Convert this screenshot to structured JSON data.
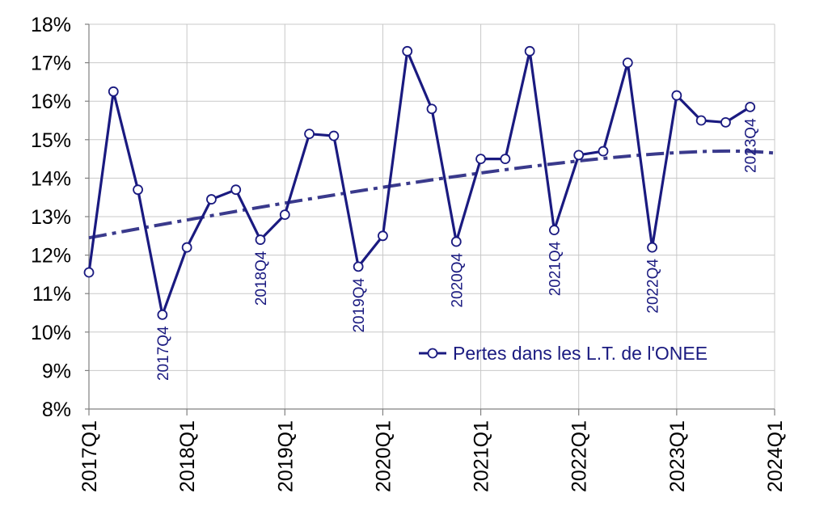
{
  "chart_data": {
    "type": "line",
    "title": "",
    "xlabel": "",
    "ylabel": "",
    "ylim": [
      8,
      18
    ],
    "y_ticks": [
      "8%",
      "9%",
      "10%",
      "11%",
      "12%",
      "13%",
      "14%",
      "15%",
      "16%",
      "17%",
      "18%"
    ],
    "x_ticks": [
      "2017Q1",
      "2018Q1",
      "2019Q1",
      "2020Q1",
      "2021Q1",
      "2022Q1",
      "2023Q1",
      "2024Q1"
    ],
    "grid": true,
    "legend_position": "bottom-right",
    "x": [
      "2017Q1",
      "2017Q2",
      "2017Q3",
      "2017Q4",
      "2018Q1",
      "2018Q2",
      "2018Q3",
      "2018Q4",
      "2019Q1",
      "2019Q2",
      "2019Q3",
      "2019Q4",
      "2020Q1",
      "2020Q2",
      "2020Q3",
      "2020Q4",
      "2021Q1",
      "2021Q2",
      "2021Q3",
      "2021Q4",
      "2022Q1",
      "2022Q2",
      "2022Q3",
      "2022Q4",
      "2023Q1",
      "2023Q2",
      "2023Q3",
      "2023Q4"
    ],
    "series": [
      {
        "name": "Pertes dans les L.T. de l'ONEE",
        "color": "#1a1a80",
        "values": [
          11.55,
          16.25,
          13.7,
          10.45,
          12.2,
          13.45,
          13.7,
          12.4,
          13.05,
          15.15,
          15.1,
          11.7,
          12.5,
          17.3,
          15.8,
          12.35,
          14.5,
          14.5,
          17.3,
          12.65,
          14.6,
          14.7,
          17.0,
          12.2,
          16.15,
          15.5,
          15.45,
          15.85
        ]
      }
    ],
    "trendline": {
      "style": "dash-dot",
      "color": "#3a3a8c",
      "start": 12.45,
      "end": 14.65
    },
    "annotations": [
      {
        "label": "2017Q4",
        "x": "2017Q4",
        "y": 10.45
      },
      {
        "label": "2018Q4",
        "x": "2018Q4",
        "y": 12.4
      },
      {
        "label": "2019Q4",
        "x": "2019Q4",
        "y": 11.7
      },
      {
        "label": "2020Q4",
        "x": "2020Q4",
        "y": 12.35
      },
      {
        "label": "2021Q4",
        "x": "2021Q4",
        "y": 12.65
      },
      {
        "label": "2022Q4",
        "x": "2022Q4",
        "y": 12.2
      },
      {
        "label": "2023Q4",
        "x": "2023Q4",
        "y": 15.85
      }
    ]
  }
}
